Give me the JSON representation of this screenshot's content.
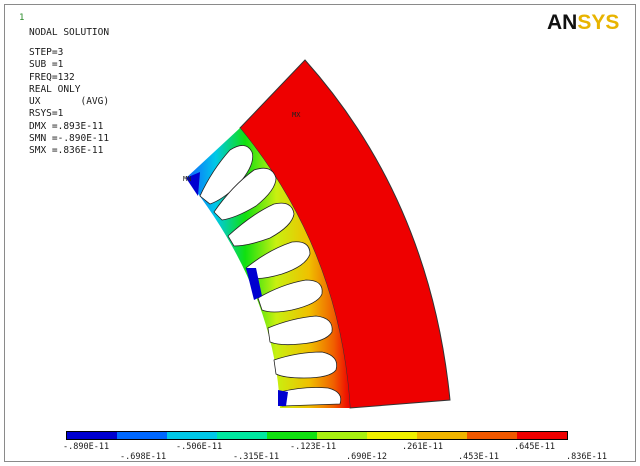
{
  "window": {
    "number": "1"
  },
  "logo": {
    "part1": "AN",
    "part2": "SYS"
  },
  "solution": {
    "title": "NODAL SOLUTION",
    "lines": [
      "STEP=3",
      "SUB =1",
      "FREQ=132",
      "REAL ONLY",
      "UX       (AVG)",
      "RSYS=1",
      "DMX =.893E-11",
      "SMN =-.890E-11",
      "SMX =.836E-11"
    ]
  },
  "markers": {
    "max": "MX",
    "min": "MN"
  },
  "legend": {
    "colors": [
      "#0000d0",
      "#0068ff",
      "#00c8e8",
      "#00e8a0",
      "#10e010",
      "#a8f010",
      "#f0f000",
      "#f0b400",
      "#f05800",
      "#ee0000"
    ],
    "top_labels": [
      ".890E-11",
      "-.506E-11",
      "-.123E-11",
      ".261E-11",
      ".645E-11"
    ],
    "top_signs": [
      "-",
      "",
      "",
      "",
      ""
    ],
    "bottom_labels": [
      "-.698E-11",
      "-.315E-11",
      ".690E-12",
      ".453E-11",
      ".836E-11"
    ]
  }
}
